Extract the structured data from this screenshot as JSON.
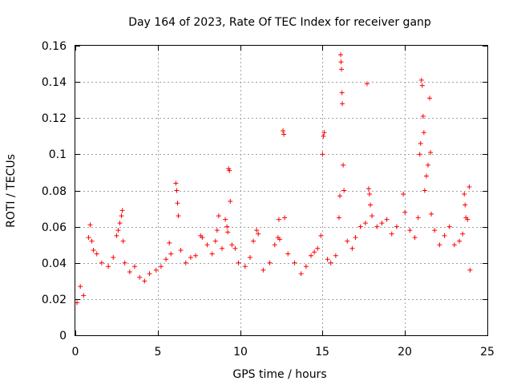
{
  "chart_data": {
    "type": "scatter",
    "title": "Day 164 of 2023, Rate Of TEC Index for receiver ganp",
    "xlabel": "GPS time / hours",
    "ylabel": "ROTI / TECUs",
    "xlim": [
      0,
      25
    ],
    "ylim": [
      0,
      0.16
    ],
    "xticks": [
      0,
      5,
      10,
      15,
      20,
      25
    ],
    "xtick_labels": [
      "0",
      "5",
      "10",
      "15",
      "20",
      "25"
    ],
    "yticks": [
      0,
      0.02,
      0.04,
      0.06,
      0.08,
      0.1,
      0.12,
      0.14,
      0.16
    ],
    "ytick_labels": [
      "0",
      "0.02",
      "0.04",
      "0.06",
      "0.08",
      "0.1",
      "0.12",
      "0.14",
      "0.16"
    ],
    "grid": true,
    "marker": "+",
    "color": "#ff0000",
    "series": [
      {
        "name": "ROTI",
        "points": [
          [
            0.1,
            0.018
          ],
          [
            0.3,
            0.027
          ],
          [
            0.5,
            0.022
          ],
          [
            0.9,
            0.061
          ],
          [
            0.8,
            0.054
          ],
          [
            1.0,
            0.052
          ],
          [
            1.1,
            0.047
          ],
          [
            1.3,
            0.045
          ],
          [
            1.6,
            0.04
          ],
          [
            2.0,
            0.038
          ],
          [
            2.3,
            0.043
          ],
          [
            2.5,
            0.055
          ],
          [
            2.6,
            0.058
          ],
          [
            2.7,
            0.062
          ],
          [
            2.8,
            0.066
          ],
          [
            2.85,
            0.069
          ],
          [
            2.9,
            0.052
          ],
          [
            3.0,
            0.04
          ],
          [
            3.3,
            0.035
          ],
          [
            3.6,
            0.038
          ],
          [
            3.9,
            0.032
          ],
          [
            4.2,
            0.03
          ],
          [
            4.5,
            0.034
          ],
          [
            4.9,
            0.036
          ],
          [
            5.2,
            0.038
          ],
          [
            5.5,
            0.042
          ],
          [
            5.7,
            0.051
          ],
          [
            5.8,
            0.045
          ],
          [
            6.1,
            0.084
          ],
          [
            6.15,
            0.08
          ],
          [
            6.2,
            0.073
          ],
          [
            6.25,
            0.066
          ],
          [
            6.4,
            0.047
          ],
          [
            6.7,
            0.04
          ],
          [
            7.0,
            0.043
          ],
          [
            7.3,
            0.044
          ],
          [
            7.6,
            0.055
          ],
          [
            7.7,
            0.054
          ],
          [
            8.0,
            0.05
          ],
          [
            8.3,
            0.045
          ],
          [
            8.5,
            0.052
          ],
          [
            8.6,
            0.058
          ],
          [
            8.7,
            0.066
          ],
          [
            8.9,
            0.048
          ],
          [
            9.1,
            0.064
          ],
          [
            9.2,
            0.06
          ],
          [
            9.25,
            0.057
          ],
          [
            9.3,
            0.092
          ],
          [
            9.35,
            0.091
          ],
          [
            9.4,
            0.074
          ],
          [
            9.5,
            0.05
          ],
          [
            9.7,
            0.048
          ],
          [
            9.9,
            0.04
          ],
          [
            10.3,
            0.038
          ],
          [
            10.6,
            0.043
          ],
          [
            10.8,
            0.052
          ],
          [
            11.0,
            0.058
          ],
          [
            11.1,
            0.056
          ],
          [
            11.4,
            0.036
          ],
          [
            11.8,
            0.04
          ],
          [
            12.1,
            0.05
          ],
          [
            12.3,
            0.054
          ],
          [
            12.35,
            0.064
          ],
          [
            12.4,
            0.053
          ],
          [
            12.6,
            0.113
          ],
          [
            12.65,
            0.111
          ],
          [
            12.7,
            0.065
          ],
          [
            12.9,
            0.045
          ],
          [
            13.3,
            0.04
          ],
          [
            13.7,
            0.034
          ],
          [
            14.0,
            0.038
          ],
          [
            14.3,
            0.044
          ],
          [
            14.5,
            0.046
          ],
          [
            14.7,
            0.048
          ],
          [
            14.9,
            0.055
          ],
          [
            15.0,
            0.1
          ],
          [
            15.05,
            0.11
          ],
          [
            15.1,
            0.112
          ],
          [
            15.3,
            0.042
          ],
          [
            15.5,
            0.04
          ],
          [
            15.8,
            0.044
          ],
          [
            16.0,
            0.065
          ],
          [
            16.05,
            0.077
          ],
          [
            16.1,
            0.155
          ],
          [
            16.12,
            0.151
          ],
          [
            16.15,
            0.147
          ],
          [
            16.18,
            0.134
          ],
          [
            16.2,
            0.128
          ],
          [
            16.25,
            0.094
          ],
          [
            16.3,
            0.08
          ],
          [
            16.5,
            0.052
          ],
          [
            16.8,
            0.048
          ],
          [
            17.0,
            0.054
          ],
          [
            17.3,
            0.06
          ],
          [
            17.6,
            0.062
          ],
          [
            17.7,
            0.139
          ],
          [
            17.8,
            0.081
          ],
          [
            17.85,
            0.078
          ],
          [
            17.9,
            0.072
          ],
          [
            18.0,
            0.066
          ],
          [
            18.3,
            0.06
          ],
          [
            18.6,
            0.062
          ],
          [
            18.9,
            0.064
          ],
          [
            19.2,
            0.056
          ],
          [
            19.5,
            0.06
          ],
          [
            19.9,
            0.078
          ],
          [
            20.0,
            0.068
          ],
          [
            20.3,
            0.058
          ],
          [
            20.6,
            0.054
          ],
          [
            20.8,
            0.065
          ],
          [
            20.9,
            0.1
          ],
          [
            20.95,
            0.106
          ],
          [
            21.0,
            0.141
          ],
          [
            21.05,
            0.138
          ],
          [
            21.1,
            0.121
          ],
          [
            21.15,
            0.112
          ],
          [
            21.2,
            0.08
          ],
          [
            21.3,
            0.088
          ],
          [
            21.4,
            0.094
          ],
          [
            21.5,
            0.131
          ],
          [
            21.55,
            0.101
          ],
          [
            21.6,
            0.067
          ],
          [
            21.8,
            0.058
          ],
          [
            22.1,
            0.05
          ],
          [
            22.4,
            0.055
          ],
          [
            22.7,
            0.06
          ],
          [
            23.0,
            0.05
          ],
          [
            23.3,
            0.052
          ],
          [
            23.5,
            0.056
          ],
          [
            23.6,
            0.078
          ],
          [
            23.65,
            0.072
          ],
          [
            23.7,
            0.065
          ],
          [
            23.8,
            0.064
          ],
          [
            23.9,
            0.082
          ],
          [
            23.95,
            0.036
          ]
        ]
      }
    ]
  }
}
